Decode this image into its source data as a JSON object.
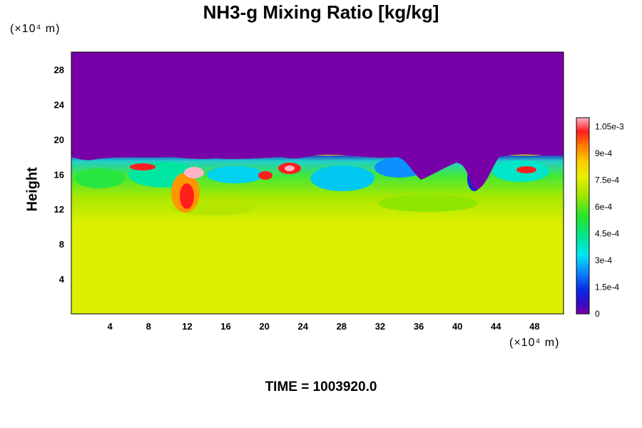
{
  "chart_data": {
    "type": "heatmap",
    "title": "NH3-g Mixing Ratio [kg/kg]",
    "ylabel": "Height",
    "x_unit": "(×10⁴ m)",
    "y_unit": "(×10⁴ m)",
    "x_ticks": [
      "4",
      "8",
      "12",
      "16",
      "20",
      "24",
      "28",
      "32",
      "36",
      "40",
      "44",
      "48"
    ],
    "x_tick_values": [
      4,
      8,
      12,
      16,
      20,
      24,
      28,
      32,
      36,
      40,
      44,
      48
    ],
    "y_ticks": [
      "4",
      "8",
      "12",
      "16",
      "20",
      "24",
      "28"
    ],
    "y_tick_values": [
      4,
      8,
      12,
      16,
      20,
      24,
      28
    ],
    "xlim": [
      0,
      51
    ],
    "ylim": [
      0,
      30
    ],
    "colorbar": {
      "range": [
        0,
        0.0011
      ],
      "labels": [
        "0",
        "1.5e-4",
        "3e-4",
        "4.5e-4",
        "6e-4",
        "7.5e-4",
        "9e-4",
        "1.05e-3"
      ],
      "label_values": [
        0,
        0.00015,
        0.0003,
        0.00045,
        0.0006,
        0.00075,
        0.0009,
        0.00105
      ]
    },
    "regions": {
      "upper_value": 0.0,
      "lower_value": 0.00078,
      "mixed_layer_range": [
        11,
        18
      ]
    },
    "footer": "TIME = 1003920.0"
  }
}
